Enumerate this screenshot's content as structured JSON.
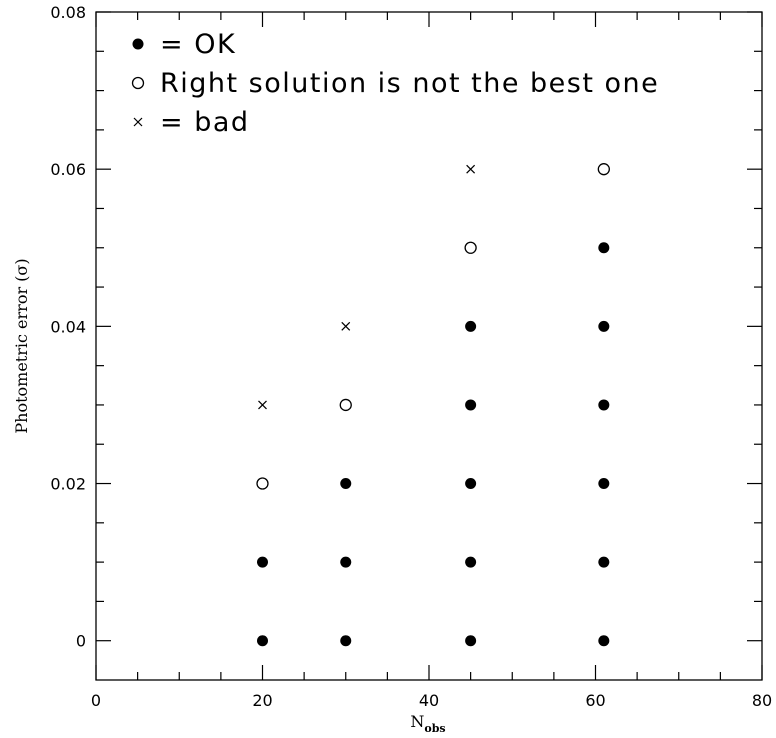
{
  "chart_data": {
    "type": "scatter",
    "title": "",
    "xlabel": "N",
    "xlabel_sub": "obs",
    "ylabel": "Photometric error (σ)",
    "xlim": [
      0,
      80
    ],
    "ylim": [
      -0.005,
      0.08
    ],
    "x_ticks": [
      0,
      20,
      40,
      60,
      80
    ],
    "x_tick_labels": [
      "0",
      "20",
      "40",
      "60",
      "80"
    ],
    "y_ticks": [
      0,
      0.02,
      0.04,
      0.06,
      0.08
    ],
    "y_tick_labels": [
      "0",
      "0.02",
      "0.04",
      "0.06",
      "0.08"
    ],
    "grid": false,
    "legend_position": "top-left",
    "legend": [
      {
        "marker": "filled-circle",
        "label": "= OK"
      },
      {
        "marker": "open-circle",
        "label": "Right solution is not the best one"
      },
      {
        "marker": "cross",
        "label": "= bad"
      }
    ],
    "series": [
      {
        "marker": "filled-circle",
        "points": [
          [
            20,
            0
          ],
          [
            20,
            0.01
          ],
          [
            30,
            0
          ],
          [
            30,
            0.01
          ],
          [
            30,
            0.02
          ],
          [
            45,
            0
          ],
          [
            45,
            0.01
          ],
          [
            45,
            0.02
          ],
          [
            45,
            0.03
          ],
          [
            45,
            0.04
          ],
          [
            61,
            0
          ],
          [
            61,
            0.01
          ],
          [
            61,
            0.02
          ],
          [
            61,
            0.03
          ],
          [
            61,
            0.04
          ],
          [
            61,
            0.05
          ]
        ]
      },
      {
        "marker": "open-circle",
        "points": [
          [
            20,
            0.02
          ],
          [
            30,
            0.03
          ],
          [
            45,
            0.05
          ],
          [
            61,
            0.06
          ]
        ]
      },
      {
        "marker": "cross",
        "points": [
          [
            20,
            0.03
          ],
          [
            30,
            0.04
          ],
          [
            45,
            0.06
          ]
        ]
      }
    ]
  }
}
